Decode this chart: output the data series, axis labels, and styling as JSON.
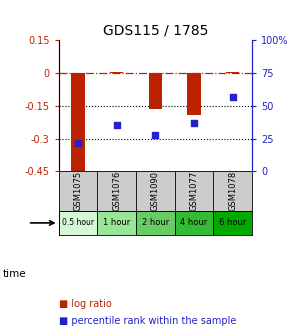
{
  "title": "GDS115 / 1785",
  "samples": [
    "GSM1075",
    "GSM1076",
    "GSM1090",
    "GSM1077",
    "GSM1078"
  ],
  "time_labels": [
    "0.5 hour",
    "1 hour",
    "2 hour",
    "4 hour",
    "6 hour"
  ],
  "time_colors": [
    "#d4f7d4",
    "#99e699",
    "#66cc66",
    "#33bb33",
    "#00aa00"
  ],
  "log_ratios": [
    -0.462,
    0.003,
    -0.163,
    -0.192,
    0.005
  ],
  "percentiles": [
    22,
    35,
    28,
    37,
    57
  ],
  "bar_color": "#bb2200",
  "dot_color": "#2222cc",
  "left_ylim": [
    -0.45,
    0.15
  ],
  "right_ylim": [
    0,
    100
  ],
  "left_yticks": [
    0.15,
    0,
    -0.15,
    -0.3,
    -0.45
  ],
  "right_yticks": [
    100,
    75,
    50,
    25,
    0
  ],
  "dotted_lines": [
    -0.15,
    -0.3
  ],
  "bg_color": "#ffffff",
  "gsm_bg": "#cccccc",
  "legend_log": "log ratio",
  "legend_pct": "percentile rank within the sample"
}
